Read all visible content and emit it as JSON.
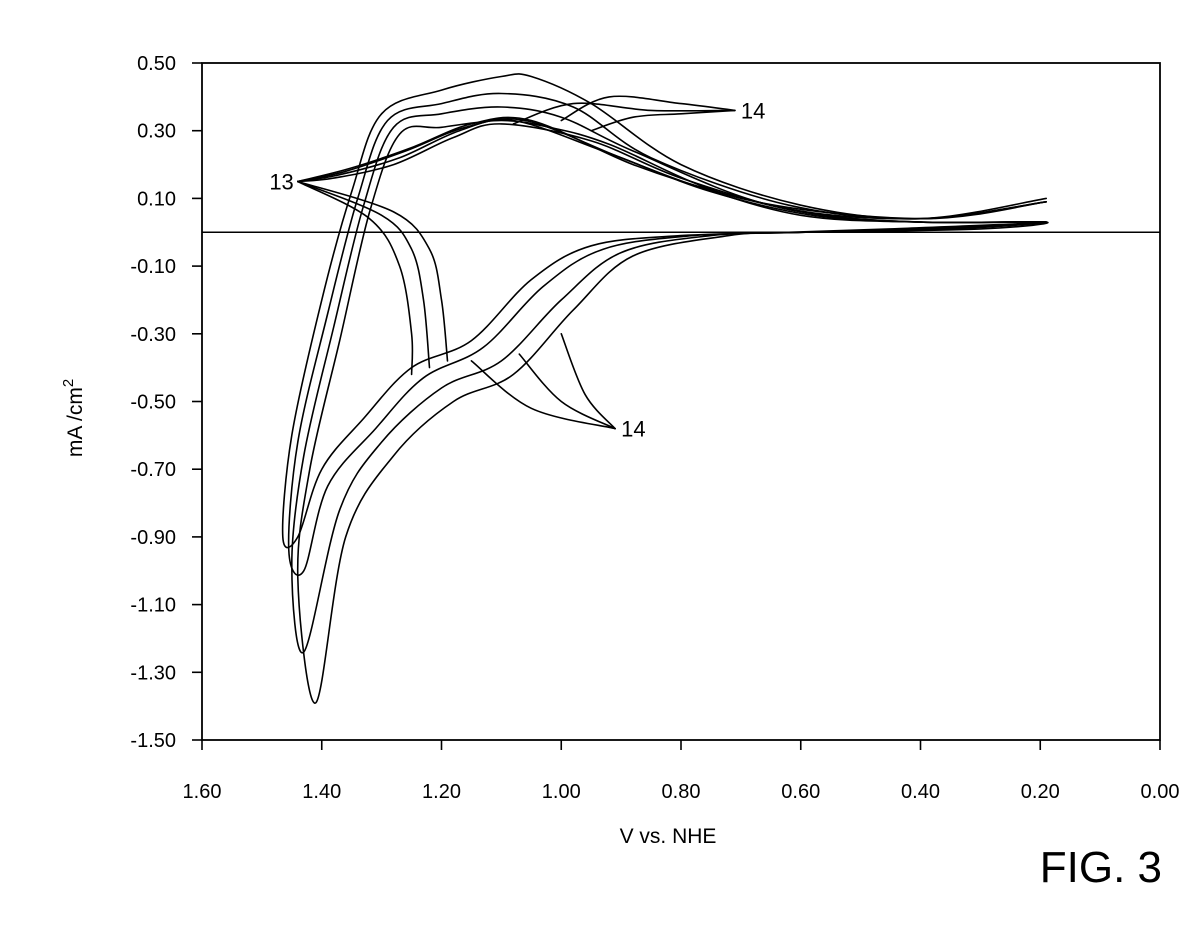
{
  "figure_label": "FIG. 3",
  "chart_data": {
    "type": "line",
    "title": "",
    "xlabel": "V  vs. NHE",
    "ylabel": "mA /cm",
    "ylabel_superscript": "2",
    "xlim": [
      1.6,
      0.0
    ],
    "ylim": [
      -1.5,
      0.5
    ],
    "x_reversed": true,
    "grid": false,
    "zero_line": 0.0,
    "x_ticks": [
      1.6,
      1.4,
      1.2,
      1.0,
      0.8,
      0.6,
      0.4,
      0.2,
      0.0
    ],
    "x_tick_labels": [
      "1.60",
      "1.40",
      "1.20",
      "1.00",
      "0.80",
      "0.60",
      "0.40",
      "0.20",
      "0.00"
    ],
    "y_ticks": [
      0.5,
      0.3,
      0.1,
      -0.1,
      -0.3,
      -0.5,
      -0.7,
      -0.9,
      -1.1,
      -1.3,
      -1.5
    ],
    "y_tick_labels": [
      "0.50",
      "0.30",
      "0.10",
      "-0.10",
      "-0.30",
      "-0.50",
      "-0.70",
      "-0.90",
      "-1.10",
      "-1.30",
      "-1.50"
    ],
    "annotations": [
      {
        "text": "13",
        "x": 1.44,
        "y": 0.15
      },
      {
        "text": "14",
        "x": 0.71,
        "y": 0.36
      },
      {
        "text": "14",
        "x": 0.91,
        "y": -0.58
      }
    ],
    "series": [
      {
        "points": [
          [
            1.44,
            0.15
          ],
          [
            1.38,
            0.16
          ],
          [
            1.28,
            0.2
          ],
          [
            1.18,
            0.28
          ],
          [
            1.1,
            0.32
          ],
          [
            0.95,
            0.27
          ],
          [
            0.8,
            0.16
          ],
          [
            0.6,
            0.06
          ],
          [
            0.4,
            0.03
          ],
          [
            0.19,
            0.03
          ],
          [
            0.3,
            0.01
          ],
          [
            0.6,
            0.0
          ],
          [
            0.8,
            -0.01
          ],
          [
            0.95,
            -0.04
          ],
          [
            1.05,
            -0.14
          ],
          [
            1.15,
            -0.32
          ],
          [
            1.25,
            -0.4
          ],
          [
            1.33,
            -0.55
          ],
          [
            1.4,
            -0.7
          ],
          [
            1.44,
            -0.9
          ],
          [
            1.465,
            -0.9
          ],
          [
            1.45,
            -0.6
          ],
          [
            1.4,
            -0.2
          ],
          [
            1.35,
            0.12
          ],
          [
            1.3,
            0.35
          ],
          [
            1.2,
            0.42
          ],
          [
            1.1,
            0.46
          ],
          [
            1.05,
            0.46
          ],
          [
            0.95,
            0.38
          ],
          [
            0.8,
            0.2
          ],
          [
            0.6,
            0.08
          ],
          [
            0.4,
            0.04
          ],
          [
            0.19,
            0.1
          ]
        ]
      },
      {
        "points": [
          [
            1.44,
            0.15
          ],
          [
            1.37,
            0.17
          ],
          [
            1.27,
            0.22
          ],
          [
            1.17,
            0.3
          ],
          [
            1.08,
            0.33
          ],
          [
            0.93,
            0.24
          ],
          [
            0.78,
            0.14
          ],
          [
            0.6,
            0.05
          ],
          [
            0.4,
            0.03
          ],
          [
            0.19,
            0.03
          ],
          [
            0.35,
            0.01
          ],
          [
            0.6,
            0.0
          ],
          [
            0.78,
            -0.01
          ],
          [
            0.93,
            -0.05
          ],
          [
            1.03,
            -0.16
          ],
          [
            1.13,
            -0.34
          ],
          [
            1.23,
            -0.43
          ],
          [
            1.31,
            -0.58
          ],
          [
            1.39,
            -0.75
          ],
          [
            1.43,
            -1.0
          ],
          [
            1.455,
            -0.94
          ],
          [
            1.44,
            -0.62
          ],
          [
            1.39,
            -0.24
          ],
          [
            1.34,
            0.1
          ],
          [
            1.29,
            0.33
          ],
          [
            1.2,
            0.38
          ],
          [
            1.1,
            0.41
          ],
          [
            0.98,
            0.37
          ],
          [
            0.85,
            0.22
          ],
          [
            0.62,
            0.08
          ],
          [
            0.4,
            0.04
          ],
          [
            0.19,
            0.09
          ]
        ]
      },
      {
        "points": [
          [
            1.44,
            0.15
          ],
          [
            1.36,
            0.18
          ],
          [
            1.26,
            0.24
          ],
          [
            1.16,
            0.31
          ],
          [
            1.06,
            0.33
          ],
          [
            0.9,
            0.22
          ],
          [
            0.75,
            0.12
          ],
          [
            0.58,
            0.05
          ],
          [
            0.4,
            0.03
          ],
          [
            0.19,
            0.03
          ],
          [
            0.4,
            0.01
          ],
          [
            0.6,
            0.0
          ],
          [
            0.75,
            -0.01
          ],
          [
            0.9,
            -0.06
          ],
          [
            1.0,
            -0.2
          ],
          [
            1.1,
            -0.38
          ],
          [
            1.2,
            -0.46
          ],
          [
            1.3,
            -0.62
          ],
          [
            1.37,
            -0.82
          ],
          [
            1.43,
            -1.24
          ],
          [
            1.45,
            -0.98
          ],
          [
            1.43,
            -0.66
          ],
          [
            1.38,
            -0.28
          ],
          [
            1.33,
            0.08
          ],
          [
            1.28,
            0.31
          ],
          [
            1.2,
            0.35
          ],
          [
            1.1,
            0.37
          ],
          [
            1.0,
            0.34
          ],
          [
            0.88,
            0.24
          ],
          [
            0.65,
            0.08
          ],
          [
            0.4,
            0.04
          ],
          [
            0.19,
            0.09
          ]
        ]
      },
      {
        "points": [
          [
            1.44,
            0.15
          ],
          [
            1.35,
            0.19
          ],
          [
            1.25,
            0.25
          ],
          [
            1.15,
            0.32
          ],
          [
            1.05,
            0.33
          ],
          [
            0.88,
            0.2
          ],
          [
            0.72,
            0.11
          ],
          [
            0.56,
            0.05
          ],
          [
            0.4,
            0.03
          ],
          [
            0.19,
            0.03
          ],
          [
            0.45,
            0.01
          ],
          [
            0.62,
            0.0
          ],
          [
            0.72,
            -0.01
          ],
          [
            0.88,
            -0.07
          ],
          [
            0.98,
            -0.23
          ],
          [
            1.08,
            -0.42
          ],
          [
            1.18,
            -0.5
          ],
          [
            1.28,
            -0.66
          ],
          [
            1.36,
            -0.9
          ],
          [
            1.41,
            -1.39
          ],
          [
            1.44,
            -1.02
          ],
          [
            1.42,
            -0.7
          ],
          [
            1.37,
            -0.32
          ],
          [
            1.32,
            0.06
          ],
          [
            1.27,
            0.29
          ],
          [
            1.2,
            0.31
          ],
          [
            1.1,
            0.33
          ],
          [
            1.02,
            0.31
          ],
          [
            0.92,
            0.26
          ],
          [
            0.7,
            0.1
          ],
          [
            0.4,
            0.04
          ],
          [
            0.19,
            0.09
          ]
        ]
      },
      {
        "points": [
          [
            1.44,
            0.15
          ],
          [
            1.3,
            0.05
          ],
          [
            1.25,
            -0.05
          ],
          [
            1.23,
            -0.2
          ],
          [
            1.22,
            -0.4
          ]
        ]
      },
      {
        "points": [
          [
            1.44,
            0.15
          ],
          [
            1.28,
            0.06
          ],
          [
            1.22,
            -0.05
          ],
          [
            1.2,
            -0.2
          ],
          [
            1.19,
            -0.38
          ]
        ]
      },
      {
        "points": [
          [
            1.44,
            0.15
          ],
          [
            1.32,
            0.04
          ],
          [
            1.27,
            -0.1
          ],
          [
            1.25,
            -0.3
          ],
          [
            1.25,
            -0.42
          ]
        ]
      },
      {
        "points": [
          [
            1.0,
            0.33
          ],
          [
            0.92,
            0.4
          ],
          [
            0.8,
            0.38
          ],
          [
            0.71,
            0.36
          ]
        ]
      },
      {
        "points": [
          [
            1.08,
            0.32
          ],
          [
            0.98,
            0.38
          ],
          [
            0.85,
            0.36
          ],
          [
            0.71,
            0.36
          ]
        ]
      },
      {
        "points": [
          [
            0.95,
            0.3
          ],
          [
            0.88,
            0.34
          ],
          [
            0.8,
            0.35
          ],
          [
            0.71,
            0.36
          ]
        ]
      },
      {
        "points": [
          [
            1.15,
            -0.38
          ],
          [
            1.05,
            -0.52
          ],
          [
            0.91,
            -0.58
          ]
        ]
      },
      {
        "points": [
          [
            1.07,
            -0.36
          ],
          [
            1.0,
            -0.5
          ],
          [
            0.91,
            -0.58
          ]
        ]
      },
      {
        "points": [
          [
            1.0,
            -0.3
          ],
          [
            0.96,
            -0.48
          ],
          [
            0.91,
            -0.58
          ]
        ]
      }
    ]
  }
}
